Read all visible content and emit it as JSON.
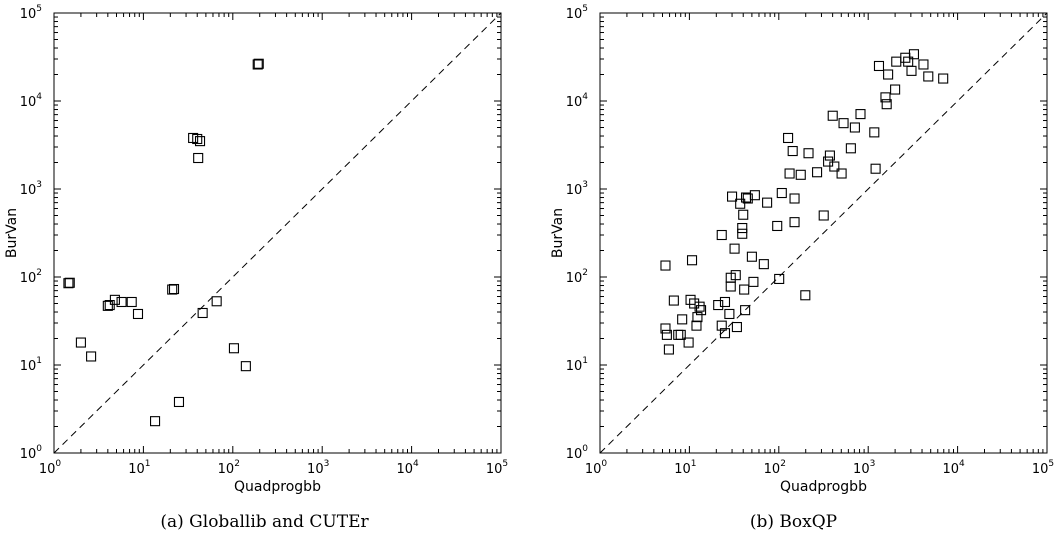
{
  "chart_data": [
    {
      "type": "scatter",
      "panel": "a",
      "caption": "(a)  Globallib and CUTEr",
      "xlabel": "Quadprogbb",
      "ylabel": "BurVan",
      "xscale": "log",
      "yscale": "log",
      "xlim": [
        1,
        100000
      ],
      "ylim": [
        1,
        100000
      ],
      "x_ticks": [
        {
          "base": "10",
          "exp": "0"
        },
        {
          "base": "10",
          "exp": "1"
        },
        {
          "base": "10",
          "exp": "2"
        },
        {
          "base": "10",
          "exp": "3"
        },
        {
          "base": "10",
          "exp": "4"
        },
        {
          "base": "10",
          "exp": "5"
        }
      ],
      "y_ticks": [
        {
          "base": "10",
          "exp": "0"
        },
        {
          "base": "10",
          "exp": "1"
        },
        {
          "base": "10",
          "exp": "2"
        },
        {
          "base": "10",
          "exp": "3"
        },
        {
          "base": "10",
          "exp": "4"
        },
        {
          "base": "10",
          "exp": "5"
        }
      ],
      "marker": "open-square",
      "reference_line": "y = x (dashed)",
      "points": [
        {
          "x": 1.45,
          "y": 85
        },
        {
          "x": 1.5,
          "y": 86
        },
        {
          "x": 2.0,
          "y": 18
        },
        {
          "x": 2.6,
          "y": 12.5
        },
        {
          "x": 4.0,
          "y": 47
        },
        {
          "x": 4.2,
          "y": 48
        },
        {
          "x": 4.8,
          "y": 55
        },
        {
          "x": 5.7,
          "y": 52
        },
        {
          "x": 7.4,
          "y": 52
        },
        {
          "x": 8.7,
          "y": 38
        },
        {
          "x": 13.5,
          "y": 2.3
        },
        {
          "x": 21,
          "y": 72
        },
        {
          "x": 22,
          "y": 73
        },
        {
          "x": 25,
          "y": 3.8
        },
        {
          "x": 36,
          "y": 3800
        },
        {
          "x": 40,
          "y": 3700
        },
        {
          "x": 41,
          "y": 2250
        },
        {
          "x": 43,
          "y": 3500
        },
        {
          "x": 46,
          "y": 39
        },
        {
          "x": 66,
          "y": 53
        },
        {
          "x": 103,
          "y": 15.5
        },
        {
          "x": 140,
          "y": 9.7
        },
        {
          "x": 190,
          "y": 26000
        },
        {
          "x": 195,
          "y": 26500
        }
      ]
    },
    {
      "type": "scatter",
      "panel": "b",
      "caption": "(b)  BoxQP",
      "xlabel": "Quadprogbb",
      "ylabel": "BurVan",
      "xscale": "log",
      "yscale": "log",
      "xlim": [
        1,
        100000
      ],
      "ylim": [
        1,
        100000
      ],
      "x_ticks": [
        {
          "base": "10",
          "exp": "0"
        },
        {
          "base": "10",
          "exp": "1"
        },
        {
          "base": "10",
          "exp": "2"
        },
        {
          "base": "10",
          "exp": "3"
        },
        {
          "base": "10",
          "exp": "4"
        },
        {
          "base": "10",
          "exp": "5"
        }
      ],
      "y_ticks": [
        {
          "base": "10",
          "exp": "0"
        },
        {
          "base": "10",
          "exp": "1"
        },
        {
          "base": "10",
          "exp": "2"
        },
        {
          "base": "10",
          "exp": "3"
        },
        {
          "base": "10",
          "exp": "4"
        },
        {
          "base": "10",
          "exp": "5"
        }
      ],
      "marker": "open-square",
      "reference_line": "y = x (dashed)",
      "points": [
        {
          "x": 5.4,
          "y": 135
        },
        {
          "x": 5.4,
          "y": 26
        },
        {
          "x": 5.6,
          "y": 22
        },
        {
          "x": 5.9,
          "y": 15
        },
        {
          "x": 6.7,
          "y": 54
        },
        {
          "x": 7.5,
          "y": 22
        },
        {
          "x": 8.0,
          "y": 22
        },
        {
          "x": 8.3,
          "y": 33
        },
        {
          "x": 9.8,
          "y": 18
        },
        {
          "x": 10.3,
          "y": 55
        },
        {
          "x": 10.7,
          "y": 155
        },
        {
          "x": 11.3,
          "y": 50
        },
        {
          "x": 12.0,
          "y": 28
        },
        {
          "x": 12.3,
          "y": 35
        },
        {
          "x": 13.0,
          "y": 46
        },
        {
          "x": 13.5,
          "y": 42
        },
        {
          "x": 21,
          "y": 48
        },
        {
          "x": 23,
          "y": 300
        },
        {
          "x": 23,
          "y": 28
        },
        {
          "x": 25,
          "y": 23
        },
        {
          "x": 25,
          "y": 52
        },
        {
          "x": 28,
          "y": 38
        },
        {
          "x": 29,
          "y": 78
        },
        {
          "x": 29,
          "y": 98
        },
        {
          "x": 30,
          "y": 820
        },
        {
          "x": 32,
          "y": 210
        },
        {
          "x": 33,
          "y": 105
        },
        {
          "x": 34,
          "y": 27
        },
        {
          "x": 37,
          "y": 680
        },
        {
          "x": 39,
          "y": 310
        },
        {
          "x": 39,
          "y": 360
        },
        {
          "x": 40,
          "y": 510
        },
        {
          "x": 41,
          "y": 72
        },
        {
          "x": 42,
          "y": 42
        },
        {
          "x": 43,
          "y": 800
        },
        {
          "x": 45,
          "y": 780
        },
        {
          "x": 50,
          "y": 170
        },
        {
          "x": 52,
          "y": 88
        },
        {
          "x": 54,
          "y": 850
        },
        {
          "x": 68,
          "y": 140
        },
        {
          "x": 74,
          "y": 700
        },
        {
          "x": 96,
          "y": 380
        },
        {
          "x": 101,
          "y": 95
        },
        {
          "x": 108,
          "y": 900
        },
        {
          "x": 127,
          "y": 3800
        },
        {
          "x": 132,
          "y": 1500
        },
        {
          "x": 143,
          "y": 2700
        },
        {
          "x": 150,
          "y": 420
        },
        {
          "x": 150,
          "y": 780
        },
        {
          "x": 176,
          "y": 1450
        },
        {
          "x": 198,
          "y": 62
        },
        {
          "x": 215,
          "y": 2550
        },
        {
          "x": 268,
          "y": 1550
        },
        {
          "x": 318,
          "y": 500
        },
        {
          "x": 356,
          "y": 2050
        },
        {
          "x": 373,
          "y": 2400
        },
        {
          "x": 401,
          "y": 6800
        },
        {
          "x": 418,
          "y": 1800
        },
        {
          "x": 504,
          "y": 1500
        },
        {
          "x": 530,
          "y": 5600
        },
        {
          "x": 640,
          "y": 2900
        },
        {
          "x": 710,
          "y": 5000
        },
        {
          "x": 820,
          "y": 7100
        },
        {
          "x": 1170,
          "y": 4400
        },
        {
          "x": 1210,
          "y": 1700
        },
        {
          "x": 1320,
          "y": 25000
        },
        {
          "x": 1560,
          "y": 11000
        },
        {
          "x": 1610,
          "y": 9200
        },
        {
          "x": 1670,
          "y": 20000
        },
        {
          "x": 2000,
          "y": 13500
        },
        {
          "x": 2060,
          "y": 28000
        },
        {
          "x": 2600,
          "y": 31000
        },
        {
          "x": 2800,
          "y": 28000
        },
        {
          "x": 3050,
          "y": 22000
        },
        {
          "x": 3250,
          "y": 34000
        },
        {
          "x": 4150,
          "y": 26000
        },
        {
          "x": 4700,
          "y": 19000
        },
        {
          "x": 6900,
          "y": 18000
        }
      ]
    }
  ]
}
